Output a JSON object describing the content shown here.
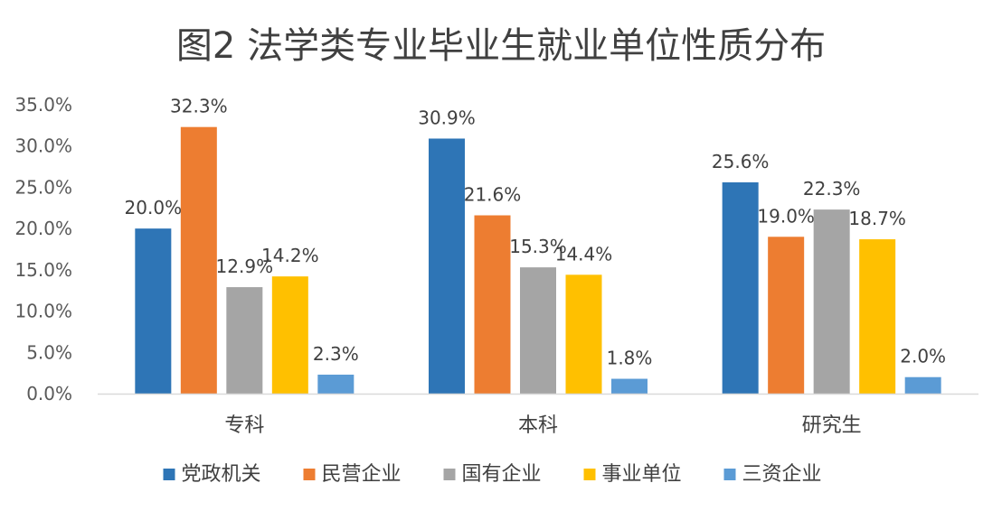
{
  "chart_data": {
    "type": "bar",
    "title": "图2 法学类专业毕业生就业单位性质分布",
    "xlabel": "",
    "ylabel": "",
    "categories": [
      "专科",
      "本科",
      "研究生"
    ],
    "series": [
      {
        "name": "党政机关",
        "color": "#2E75B6",
        "values": [
          20.0,
          30.9,
          25.6
        ],
        "labels": [
          "20.0%",
          "30.9%",
          "25.6%"
        ]
      },
      {
        "name": "民营企业",
        "color": "#ED7D31",
        "values": [
          32.3,
          21.6,
          19.0
        ],
        "labels": [
          "32.3%",
          "21.6%",
          "19.0%"
        ]
      },
      {
        "name": "国有企业",
        "color": "#A5A5A5",
        "values": [
          12.9,
          15.3,
          22.3
        ],
        "labels": [
          "12.9%",
          "15.3%",
          "22.3%"
        ]
      },
      {
        "name": "事业单位",
        "color": "#FFC000",
        "values": [
          14.2,
          14.4,
          18.7
        ],
        "labels": [
          "14.2%",
          "14.4%",
          "18.7%"
        ]
      },
      {
        "name": "三资企业",
        "color": "#5B9BD5",
        "values": [
          2.3,
          1.8,
          2.0
        ],
        "labels": [
          "2.3%",
          "1.8%",
          "2.0%"
        ]
      }
    ],
    "ylim": [
      0,
      35
    ],
    "yticks": [
      0,
      5,
      10,
      15,
      20,
      25,
      30,
      35
    ],
    "ytick_labels": [
      "0.0%",
      "5.0%",
      "10.0%",
      "15.0%",
      "20.0%",
      "25.0%",
      "30.0%",
      "35.0%"
    ],
    "grid": false,
    "legend_position": "bottom"
  }
}
